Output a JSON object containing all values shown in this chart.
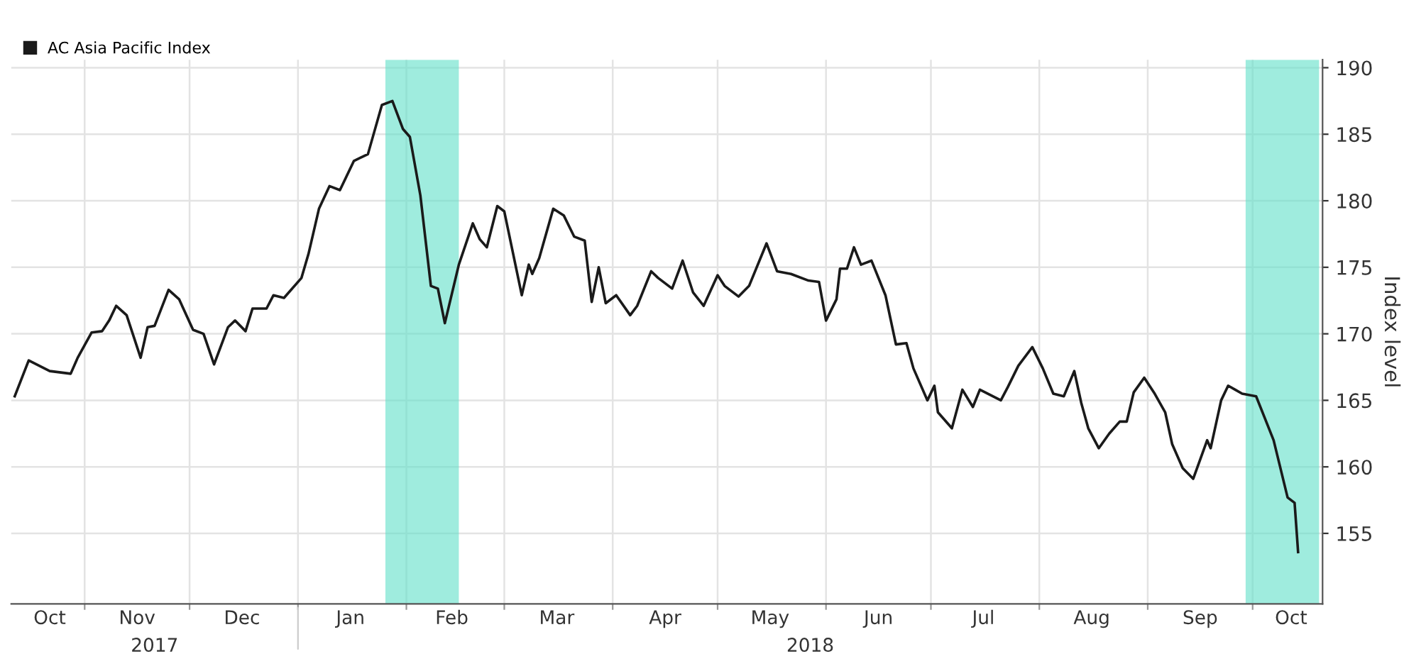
{
  "chart_data": {
    "type": "line",
    "ylabel": "Index level",
    "x": [
      "2017-10-12",
      "2017-10-16",
      "2017-10-22",
      "2017-10-28",
      "2017-10-30",
      "2017-11-03",
      "2017-11-06",
      "2017-11-08",
      "2017-11-10",
      "2017-11-13",
      "2017-11-17",
      "2017-11-19",
      "2017-11-21",
      "2017-11-25",
      "2017-11-28",
      "2017-12-02",
      "2017-12-05",
      "2017-12-08",
      "2017-12-12",
      "2017-12-14",
      "2017-12-17",
      "2017-12-19",
      "2017-12-23",
      "2017-12-25",
      "2017-12-28",
      "2018-01-02",
      "2018-01-04",
      "2018-01-07",
      "2018-01-10",
      "2018-01-13",
      "2018-01-17",
      "2018-01-21",
      "2018-01-25",
      "2018-01-28",
      "2018-01-31",
      "2018-02-02",
      "2018-02-05",
      "2018-02-08",
      "2018-02-10",
      "2018-02-12",
      "2018-02-16",
      "2018-02-20",
      "2018-02-22",
      "2018-02-24",
      "2018-02-27",
      "2018-03-01",
      "2018-03-06",
      "2018-03-08",
      "2018-03-09",
      "2018-03-11",
      "2018-03-15",
      "2018-03-18",
      "2018-03-21",
      "2018-03-24",
      "2018-03-26",
      "2018-03-28",
      "2018-03-30",
      "2018-04-02",
      "2018-04-06",
      "2018-04-08",
      "2018-04-12",
      "2018-04-14",
      "2018-04-18",
      "2018-04-21",
      "2018-04-24",
      "2018-04-27",
      "2018-05-01",
      "2018-05-03",
      "2018-05-07",
      "2018-05-10",
      "2018-05-15",
      "2018-05-18",
      "2018-05-22",
      "2018-05-27",
      "2018-05-30",
      "2018-06-01",
      "2018-06-04",
      "2018-06-05",
      "2018-06-07",
      "2018-06-09",
      "2018-06-11",
      "2018-06-14",
      "2018-06-18",
      "2018-06-21",
      "2018-06-24",
      "2018-06-26",
      "2018-06-30",
      "2018-07-02",
      "2018-07-03",
      "2018-07-07",
      "2018-07-10",
      "2018-07-13",
      "2018-07-15",
      "2018-07-21",
      "2018-07-23",
      "2018-07-26",
      "2018-07-30",
      "2018-08-02",
      "2018-08-05",
      "2018-08-08",
      "2018-08-11",
      "2018-08-13",
      "2018-08-15",
      "2018-08-18",
      "2018-08-21",
      "2018-08-24",
      "2018-08-26",
      "2018-08-28",
      "2018-08-31",
      "2018-09-03",
      "2018-09-06",
      "2018-09-08",
      "2018-09-11",
      "2018-09-14",
      "2018-09-18",
      "2018-09-19",
      "2018-09-22",
      "2018-09-24",
      "2018-09-26",
      "2018-09-28",
      "2018-10-02",
      "2018-10-07",
      "2018-10-11",
      "2018-10-13",
      "2018-10-14"
    ],
    "series": [
      {
        "name": "AC Asia Pacific Index",
        "color": "#1a1a1a",
        "values": [
          165.3,
          168.0,
          167.2,
          167.0,
          168.2,
          170.1,
          170.2,
          171.0,
          172.1,
          171.4,
          168.2,
          170.5,
          170.6,
          173.3,
          172.6,
          170.3,
          170.0,
          167.7,
          170.5,
          171.0,
          170.2,
          171.9,
          171.9,
          172.9,
          172.7,
          174.2,
          176.0,
          179.4,
          181.1,
          180.8,
          183.0,
          183.5,
          187.2,
          187.5,
          185.4,
          184.8,
          180.4,
          173.6,
          173.4,
          170.8,
          175.2,
          178.3,
          177.1,
          176.5,
          179.6,
          179.2,
          172.9,
          175.2,
          174.5,
          175.7,
          179.4,
          178.9,
          177.3,
          177.0,
          172.4,
          175.0,
          172.3,
          172.9,
          171.4,
          172.1,
          174.7,
          174.2,
          173.4,
          175.5,
          173.1,
          172.1,
          174.4,
          173.6,
          172.8,
          173.6,
          176.8,
          174.7,
          174.5,
          174.0,
          173.9,
          171.0,
          172.6,
          174.9,
          174.9,
          176.5,
          175.2,
          175.5,
          172.9,
          169.2,
          169.3,
          167.4,
          165.0,
          166.1,
          164.1,
          162.9,
          165.8,
          164.5,
          165.8,
          165.0,
          166.0,
          167.6,
          169.0,
          167.4,
          165.5,
          165.3,
          167.2,
          164.8,
          162.9,
          161.4,
          162.5,
          163.4,
          163.4,
          165.6,
          166.7,
          165.5,
          164.1,
          161.7,
          159.9,
          159.1,
          162.0,
          161.4,
          165.0,
          166.1,
          165.8,
          165.5,
          165.3,
          162.0,
          157.7,
          157.3,
          153.6
        ]
      }
    ],
    "xlim": [
      "2017-10-11",
      "2018-10-21"
    ],
    "xticks": [
      {
        "value": "2017-10-22",
        "label": "Oct"
      },
      {
        "value": "2017-11-01",
        "label": null
      },
      {
        "value": "2017-11-16",
        "label": "Nov"
      },
      {
        "value": "2017-12-01",
        "label": null
      },
      {
        "value": "2017-12-16",
        "label": "Dec"
      },
      {
        "value": "2018-01-01",
        "label": null
      },
      {
        "value": "2018-01-16",
        "label": "Jan"
      },
      {
        "value": "2018-02-01",
        "label": null
      },
      {
        "value": "2018-02-14",
        "label": "Feb"
      },
      {
        "value": "2018-03-01",
        "label": null
      },
      {
        "value": "2018-03-16",
        "label": "Mar"
      },
      {
        "value": "2018-04-01",
        "label": null
      },
      {
        "value": "2018-04-16",
        "label": "Apr"
      },
      {
        "value": "2018-05-01",
        "label": null
      },
      {
        "value": "2018-05-16",
        "label": "May"
      },
      {
        "value": "2018-06-01",
        "label": null
      },
      {
        "value": "2018-06-16",
        "label": "Jun"
      },
      {
        "value": "2018-07-01",
        "label": null
      },
      {
        "value": "2018-07-16",
        "label": "Jul"
      },
      {
        "value": "2018-08-01",
        "label": null
      },
      {
        "value": "2018-08-16",
        "label": "Aug"
      },
      {
        "value": "2018-09-01",
        "label": null
      },
      {
        "value": "2018-09-16",
        "label": "Sep"
      },
      {
        "value": "2018-10-01",
        "label": null
      },
      {
        "value": "2018-10-12",
        "label": "Oct"
      }
    ],
    "ylim": [
      149.7,
      190.6
    ],
    "yticks": [
      155,
      160,
      165,
      170,
      175,
      180,
      185,
      190
    ],
    "grid": true,
    "legend": "top left",
    "marker": "none",
    "line_style": "solid",
    "bands": [
      {
        "axis": "x",
        "from": "2018-01-26",
        "to": "2018-02-16",
        "color": "#5fe0c8"
      },
      {
        "axis": "x",
        "from": "2018-09-29",
        "to": "2018-10-20",
        "color": "#5fe0c8"
      }
    ],
    "annotations": [
      "2017",
      "2018"
    ]
  }
}
